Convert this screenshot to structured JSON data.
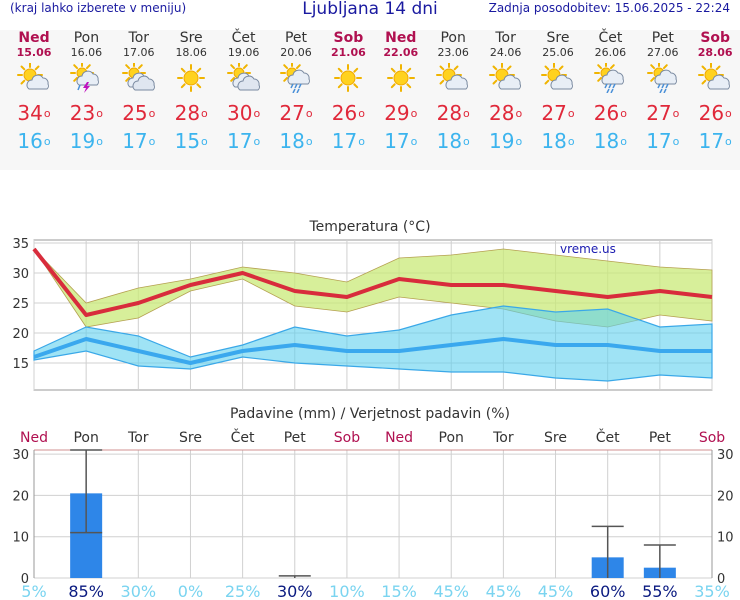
{
  "header": {
    "note": "(kraj lahko izberete v meniju)",
    "title": "Ljubljana 14 dni",
    "updated": "Zadnja posodobitev: 15.06.2025 - 22:24"
  },
  "days": [
    {
      "name": "Ned",
      "date": "15.06",
      "icon": "sun-cloud-icon",
      "high": "34",
      "low": "16",
      "weekend": true
    },
    {
      "name": "Pon",
      "date": "16.06",
      "icon": "storm-icon",
      "high": "23",
      "low": "19",
      "weekend": false
    },
    {
      "name": "Tor",
      "date": "17.06",
      "icon": "cloudy-icon",
      "high": "25",
      "low": "17",
      "weekend": false
    },
    {
      "name": "Sre",
      "date": "18.06",
      "icon": "sun-icon",
      "high": "28",
      "low": "15",
      "weekend": false
    },
    {
      "name": "Čet",
      "date": "19.06",
      "icon": "cloudy-icon",
      "high": "30",
      "low": "17",
      "weekend": false
    },
    {
      "name": "Pet",
      "date": "20.06",
      "icon": "sun-shower-icon",
      "high": "27",
      "low": "18",
      "weekend": false
    },
    {
      "name": "Sob",
      "date": "21.06",
      "icon": "sun-icon",
      "high": "26",
      "low": "17",
      "weekend": true
    },
    {
      "name": "Ned",
      "date": "22.06",
      "icon": "sun-icon",
      "high": "29",
      "low": "17",
      "weekend": true
    },
    {
      "name": "Pon",
      "date": "23.06",
      "icon": "sun-cloud-icon",
      "high": "28",
      "low": "18",
      "weekend": false
    },
    {
      "name": "Tor",
      "date": "24.06",
      "icon": "sun-cloud-icon",
      "high": "28",
      "low": "19",
      "weekend": false
    },
    {
      "name": "Sre",
      "date": "25.06",
      "icon": "sun-cloud-icon",
      "high": "27",
      "low": "18",
      "weekend": false
    },
    {
      "name": "Čet",
      "date": "26.06",
      "icon": "sun-shower-icon",
      "high": "26",
      "low": "18",
      "weekend": false
    },
    {
      "name": "Pet",
      "date": "27.06",
      "icon": "sun-shower-icon",
      "high": "27",
      "low": "17",
      "weekend": false
    },
    {
      "name": "Sob",
      "date": "28.06",
      "icon": "sun-cloud-icon",
      "high": "26",
      "low": "17",
      "weekend": true
    }
  ],
  "colors": {
    "high": "#e0283a",
    "low": "#3cb4ee",
    "weekend": "#b01050",
    "weekday": "#333333"
  },
  "chart_data": [
    {
      "type": "line",
      "title": "Temperatura (°C)",
      "watermark": "vreme.us",
      "yticks": [
        15,
        20,
        25,
        30,
        35
      ],
      "ylim": [
        10.5,
        35.5
      ],
      "series": [
        {
          "values": [
            34,
            23,
            25,
            28,
            30,
            27,
            26,
            29,
            28,
            28,
            27,
            26,
            27,
            26
          ]
        },
        {
          "values": [
            34,
            25,
            27.5,
            29,
            31,
            30,
            28.5,
            32.5,
            33,
            34,
            33,
            32,
            31,
            30.5
          ]
        },
        {
          "values": [
            34,
            21,
            22.5,
            27,
            29,
            24.5,
            23.5,
            26,
            25,
            24,
            22,
            21,
            23,
            22
          ]
        },
        {
          "values": [
            16,
            19,
            17,
            15,
            17,
            18,
            17,
            17,
            18,
            19,
            18,
            18,
            17,
            17
          ]
        },
        {
          "values": [
            17,
            21,
            19.5,
            16,
            18,
            21,
            19.5,
            20.5,
            23,
            24.5,
            23.5,
            24,
            21,
            21.5
          ]
        },
        {
          "values": [
            15.5,
            17,
            14.5,
            14,
            16,
            15,
            14.5,
            14,
            13.5,
            13.5,
            12.5,
            12,
            13,
            12.5
          ]
        }
      ],
      "grid": true
    },
    {
      "type": "bar",
      "title": "Padavine (mm) / Verjetnost padavin (%)",
      "categories": [
        "Ned",
        "Pon",
        "Tor",
        "Sre",
        "Čet",
        "Pet",
        "Sob",
        "Ned",
        "Pon",
        "Tor",
        "Sre",
        "Čet",
        "Pet",
        "Sob"
      ],
      "weekend": [
        true,
        false,
        false,
        false,
        false,
        false,
        true,
        true,
        false,
        false,
        false,
        false,
        false,
        true
      ],
      "values": [
        0,
        20.5,
        0,
        0,
        0,
        0,
        0,
        0,
        0,
        0,
        0,
        5,
        2.5,
        0
      ],
      "error_low": [
        0,
        11,
        0,
        0,
        0,
        0,
        0,
        0,
        0,
        0,
        0,
        0,
        0,
        0
      ],
      "error_high": [
        0,
        31,
        0,
        0,
        0,
        0.5,
        0,
        0,
        0,
        0,
        0,
        12.5,
        8,
        0
      ],
      "probability": [
        "5%",
        "85%",
        "30%",
        "0%",
        "25%",
        "30%",
        "10%",
        "15%",
        "45%",
        "45%",
        "45%",
        "60%",
        "55%",
        "35%"
      ],
      "probability_strong": [
        false,
        true,
        false,
        false,
        false,
        true,
        false,
        false,
        false,
        false,
        false,
        true,
        true,
        false
      ],
      "yticks": [
        0,
        10,
        20,
        30
      ],
      "ylim": [
        0,
        31
      ],
      "grid": true
    }
  ]
}
